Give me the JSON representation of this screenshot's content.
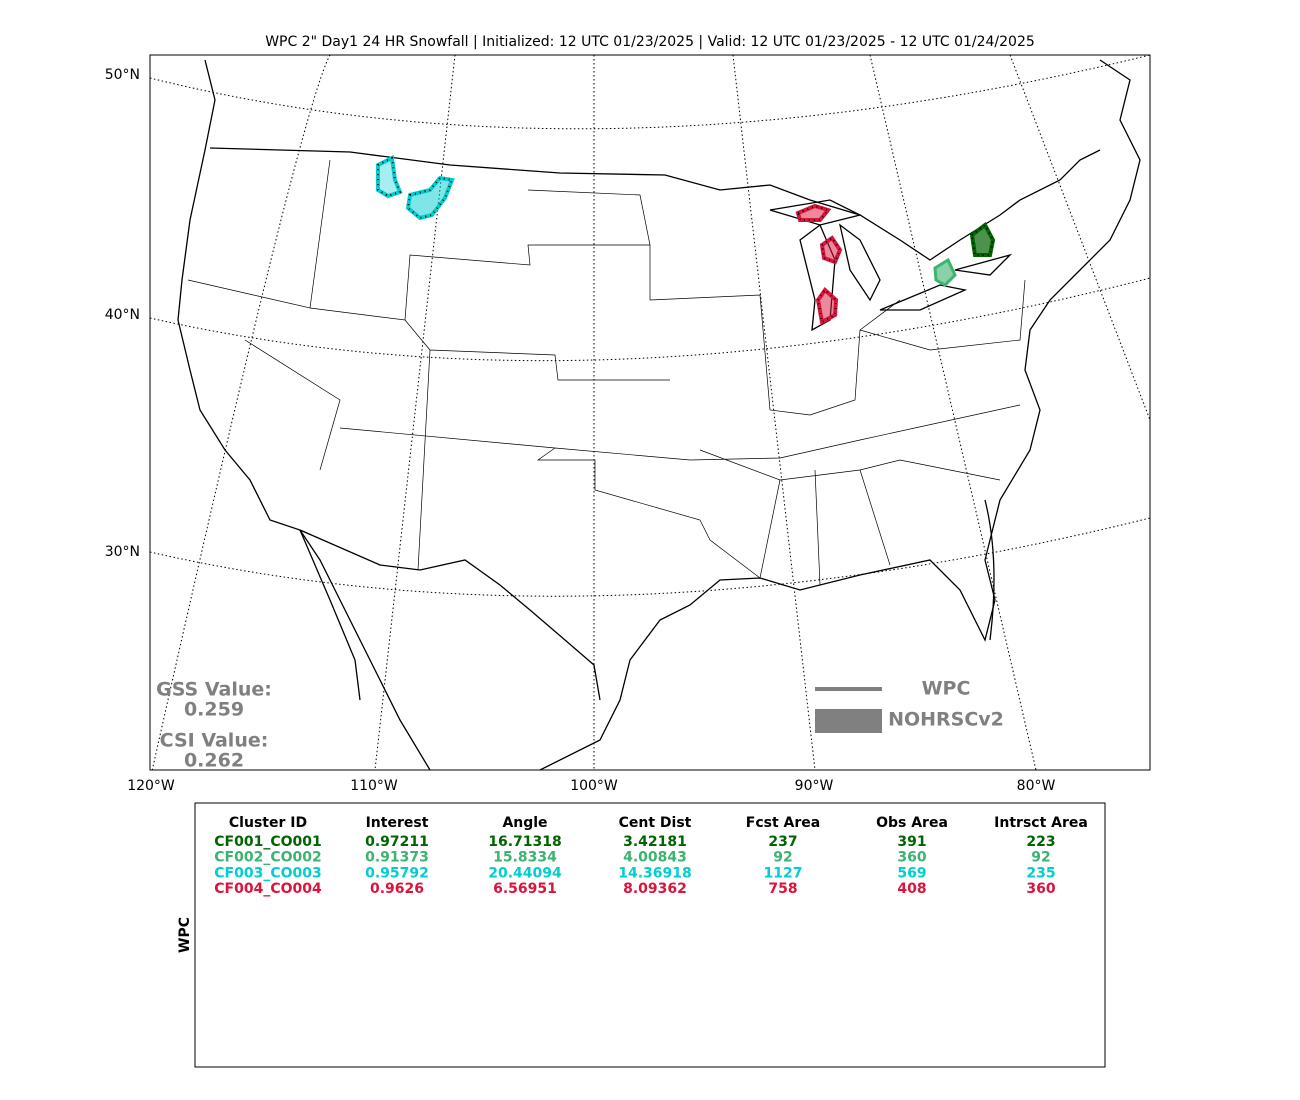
{
  "title": "WPC 2\" Day1 24 HR Snowfall | Initialized: 12 UTC 01/23/2025 | Valid: 12 UTC 01/23/2025 - 12 UTC 01/24/2025",
  "map": {
    "lat_labels": [
      "50°N",
      "40°N",
      "30°N"
    ],
    "lon_labels": [
      "120°W",
      "110°W",
      "100°W",
      "90°W",
      "80°W"
    ],
    "scores": {
      "gss_label": "GSS Value:",
      "gss_value": "0.259",
      "csi_label": "CSI Value:",
      "csi_value": "0.262"
    },
    "legend": [
      "WPC",
      "NOHRSCv2"
    ]
  },
  "table": {
    "side_label": "WPC",
    "headers": [
      "Cluster ID",
      "Interest",
      "Angle",
      "Cent Dist",
      "Fcst Area",
      "Obs Area",
      "Intrsct Area"
    ],
    "rows": [
      {
        "color": "#006400",
        "cells": [
          "CF001_CO001",
          "0.97211",
          "16.71318",
          "3.42181",
          "237",
          "391",
          "223"
        ]
      },
      {
        "color": "#3cb371",
        "cells": [
          "CF002_CO002",
          "0.91373",
          "15.8334",
          "4.00843",
          "92",
          "360",
          "92"
        ]
      },
      {
        "color": "#00ced1",
        "cells": [
          "CF003_CO003",
          "0.95792",
          "20.44094",
          "14.36918",
          "1127",
          "569",
          "235"
        ]
      },
      {
        "color": "#dc143c",
        "cells": [
          "CF004_CO004",
          "0.9626",
          "6.56951",
          "8.09362",
          "758",
          "408",
          "360"
        ]
      }
    ]
  }
}
